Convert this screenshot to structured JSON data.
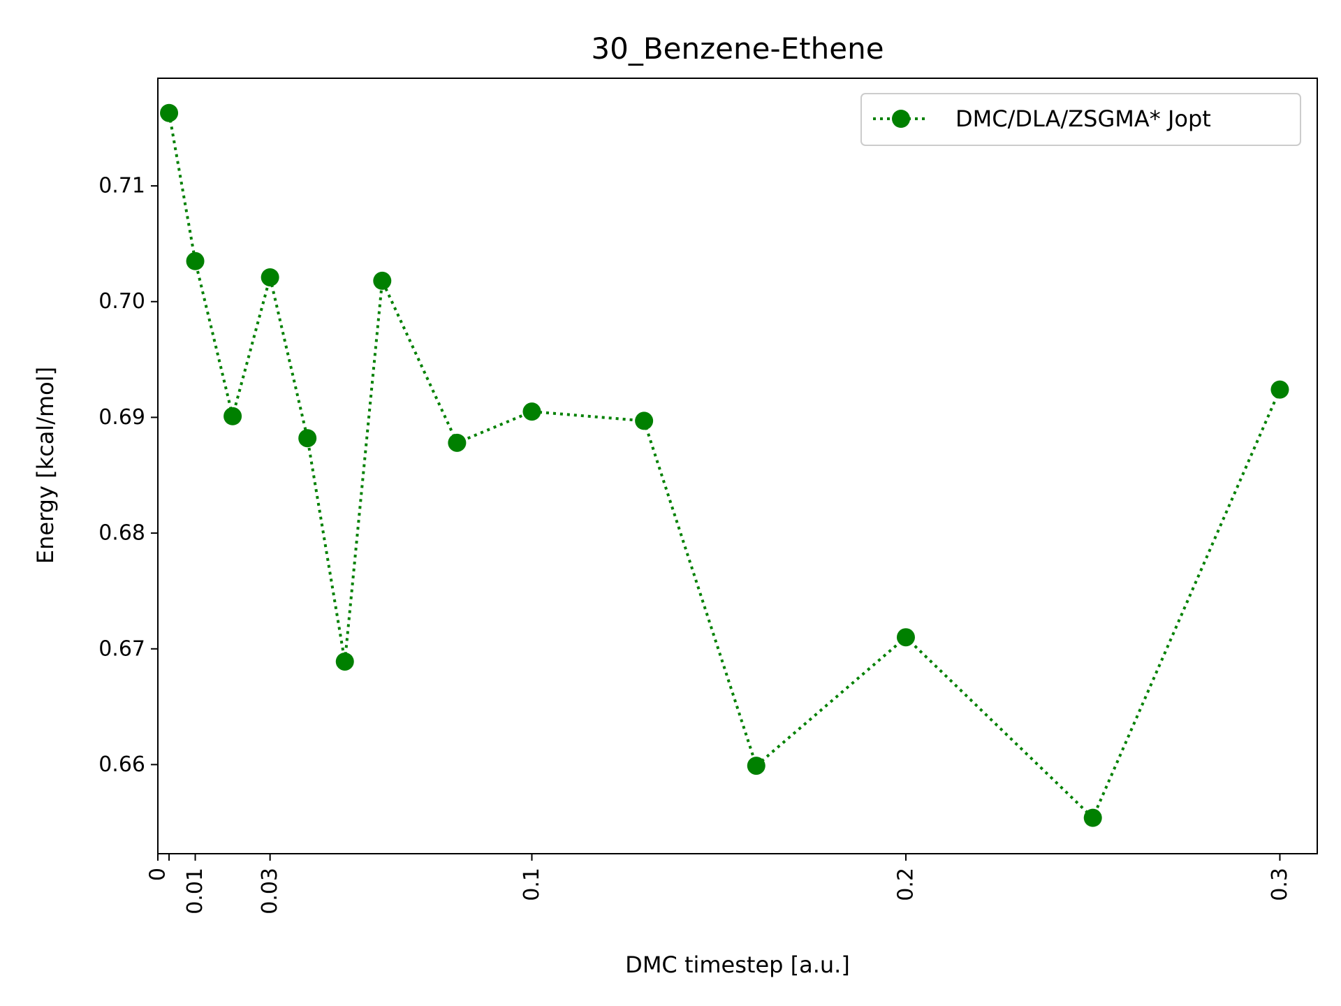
{
  "chart_data": {
    "type": "line",
    "title": "30_Benzene-Ethene",
    "xlabel": "DMC timestep [a.u.]",
    "ylabel": "Energy [kcal/mol]",
    "xlim": [
      0,
      0.31
    ],
    "ylim": [
      0.6523,
      0.7193
    ],
    "xticks": [
      {
        "value": 0,
        "label": "0"
      },
      {
        "value": 0.003,
        "label": ""
      },
      {
        "value": 0.01,
        "label": "0.01"
      },
      {
        "value": 0.03,
        "label": "0.03"
      },
      {
        "value": 0.1,
        "label": "0.1"
      },
      {
        "value": 0.2,
        "label": "0.2"
      },
      {
        "value": 0.3,
        "label": "0.3"
      }
    ],
    "yticks": [
      0.66,
      0.67,
      0.68,
      0.69,
      0.7,
      0.71
    ],
    "ytick_labels": [
      "0.66",
      "0.67",
      "0.68",
      "0.69",
      "0.70",
      "0.71"
    ],
    "grid": false,
    "legend_position": "top-right",
    "series": [
      {
        "name": "DMC/DLA/ZSGMA* Jopt",
        "color": "#008000",
        "line_style": "dotted",
        "marker": "circle",
        "x": [
          0.003,
          0.01,
          0.02,
          0.03,
          0.04,
          0.05,
          0.06,
          0.08,
          0.1,
          0.13,
          0.16,
          0.2,
          0.25,
          0.3
        ],
        "y": [
          0.7163,
          0.7035,
          0.6901,
          0.7021,
          0.6882,
          0.6689,
          0.7018,
          0.6878,
          0.6905,
          0.6897,
          0.6599,
          0.671,
          0.6554,
          0.6924
        ]
      }
    ]
  }
}
